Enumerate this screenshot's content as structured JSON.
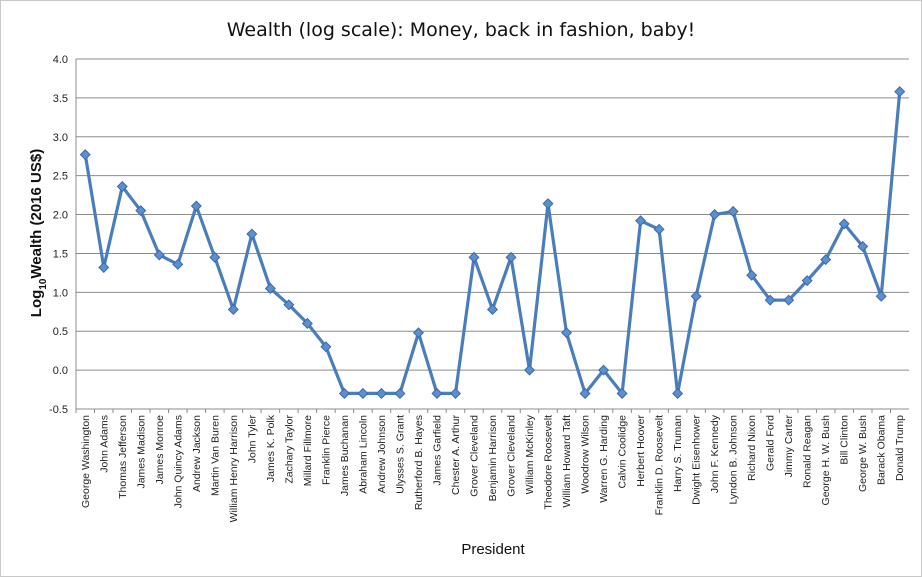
{
  "chart_data": {
    "type": "line",
    "title": "Wealth (log scale): Money, back in fashion, baby!",
    "xlabel": "President",
    "ylabel": {
      "prefix": "Log",
      "subscript": "10",
      "suffix": "Wealth (2016 US$)"
    },
    "ylim": [
      -0.5,
      4.0
    ],
    "yticks": [
      "-0.5",
      "0.0",
      "0.5",
      "1.0",
      "1.5",
      "2.0",
      "2.5",
      "3.0",
      "3.5",
      "4.0"
    ],
    "grid": "horizontal",
    "legend": "none",
    "colors": {
      "line": "#4a7ebb",
      "marker_fill": "#5b8fd0",
      "marker_stroke": "#3a6aa8",
      "grid": "#8c8c8c"
    },
    "categories": [
      "George Washington",
      "John Adams",
      "Thomas Jefferson",
      "James Madison",
      "James Monroe",
      "John Quincy Adams",
      "Andrew Jackson",
      "Martin Van Buren",
      "William Henry Harrison",
      "John Tyler",
      "James K. Polk",
      "Zachary Taylor",
      "Millard Fillmore",
      "Franklin Pierce",
      "James Buchanan",
      "Abraham Lincoln",
      "Andrew Johnson",
      "Ulysses S. Grant",
      "Rutherford B. Hayes",
      "James Garfield",
      "Chester A. Arthur",
      "Grover Cleveland",
      "Benjamin Harrison",
      "Grover Cleveland",
      "William McKinley",
      "Theodore Roosevelt",
      "William Howard Taft",
      "Woodrow Wilson",
      "Warren G. Harding",
      "Calvin Coolidge",
      "Herbert Hoover",
      "Franklin D. Roosevelt",
      "Harry S. Truman",
      "Dwight Eisenhower",
      "John F. Kennedy",
      "Lyndon B. Johnson",
      "Richard Nixon",
      "Gerald Ford",
      "Jimmy Carter",
      "Ronald Reagan",
      "George H. W. Bush",
      "Bill Clinton",
      "George W. Bush",
      "Barack Obama",
      "Donald Trump"
    ],
    "values": [
      2.77,
      1.32,
      2.36,
      2.05,
      1.48,
      1.36,
      2.11,
      1.45,
      0.78,
      1.75,
      1.05,
      0.84,
      0.6,
      0.3,
      -0.3,
      -0.3,
      -0.3,
      -0.3,
      0.48,
      -0.3,
      -0.3,
      1.45,
      0.78,
      1.45,
      0.0,
      2.14,
      0.48,
      -0.3,
      0.0,
      -0.3,
      1.92,
      1.81,
      -0.3,
      0.95,
      2.0,
      2.04,
      1.22,
      0.9,
      0.9,
      1.15,
      1.42,
      1.88,
      1.59,
      0.95,
      3.58
    ]
  }
}
